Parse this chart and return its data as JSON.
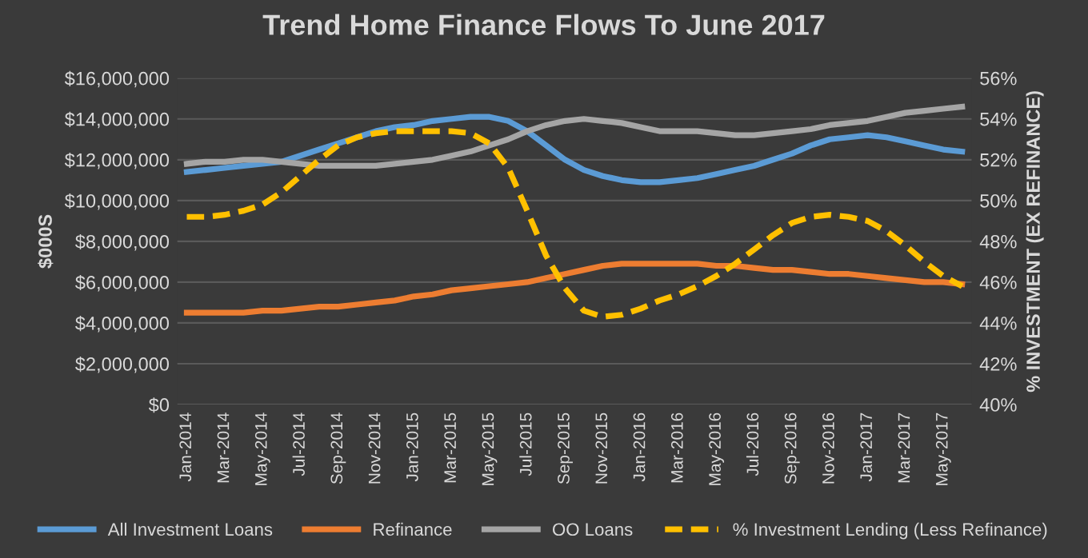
{
  "chart_data": {
    "type": "line",
    "title": "Trend Home Finance Flows To June 2017",
    "ylabel": "$000S",
    "y2label": "% INVESTMENT (EX REFINANCE)",
    "categories": [
      "Jan-2014",
      null,
      "Mar-2014",
      null,
      "May-2014",
      null,
      "Jul-2014",
      null,
      "Sep-2014",
      null,
      "Nov-2014",
      null,
      "Jan-2015",
      null,
      "Mar-2015",
      null,
      "May-2015",
      null,
      "Jul-2015",
      null,
      "Sep-2015",
      null,
      "Nov-2015",
      null,
      "Jan-2016",
      null,
      "Mar-2016",
      null,
      "May-2016",
      null,
      "Jul-2016",
      null,
      "Sep-2016",
      null,
      "Nov-2016",
      null,
      "Jan-2017",
      null,
      "Mar-2017",
      null,
      "May-2017",
      null
    ],
    "series": [
      {
        "name": "All Investment Loans",
        "color": "#5b9bd5",
        "values": [
          11400000,
          11500000,
          11600000,
          11700000,
          11800000,
          11900000,
          12200000,
          12500000,
          12800000,
          13100000,
          13400000,
          13600000,
          13700000,
          13900000,
          14000000,
          14100000,
          14100000,
          13900000,
          13400000,
          12700000,
          12000000,
          11500000,
          11200000,
          11000000,
          10900000,
          10900000,
          11000000,
          11100000,
          11300000,
          11500000,
          11700000,
          12000000,
          12300000,
          12700000,
          13000000,
          13100000,
          13200000,
          13100000,
          12900000,
          12700000,
          12500000,
          12400000
        ]
      },
      {
        "name": "Refinance",
        "color": "#ed7d31",
        "values": [
          4500000,
          4500000,
          4500000,
          4500000,
          4600000,
          4600000,
          4700000,
          4800000,
          4800000,
          4900000,
          5000000,
          5100000,
          5300000,
          5400000,
          5600000,
          5700000,
          5800000,
          5900000,
          6000000,
          6200000,
          6400000,
          6600000,
          6800000,
          6900000,
          6900000,
          6900000,
          6900000,
          6900000,
          6800000,
          6800000,
          6700000,
          6600000,
          6600000,
          6500000,
          6400000,
          6400000,
          6300000,
          6200000,
          6100000,
          6000000,
          6000000,
          5900000
        ]
      },
      {
        "name": "OO Loans",
        "color": "#a5a5a5",
        "values": [
          11800000,
          11900000,
          11900000,
          12000000,
          12000000,
          11900000,
          11800000,
          11700000,
          11700000,
          11700000,
          11700000,
          11800000,
          11900000,
          12000000,
          12200000,
          12400000,
          12700000,
          13000000,
          13400000,
          13700000,
          13900000,
          14000000,
          13900000,
          13800000,
          13600000,
          13400000,
          13400000,
          13400000,
          13300000,
          13200000,
          13200000,
          13300000,
          13400000,
          13500000,
          13700000,
          13800000,
          13900000,
          14100000,
          14300000,
          14400000,
          14500000,
          14600000
        ]
      },
      {
        "name": "% Investment Lending (Less Refinance)",
        "color": "#ffc000",
        "axis": "y2",
        "line_style": "dashed",
        "values": [
          49.2,
          49.2,
          49.3,
          49.5,
          49.8,
          50.4,
          51.2,
          52.0,
          52.7,
          53.1,
          53.3,
          53.4,
          53.4,
          53.4,
          53.4,
          53.3,
          52.8,
          51.6,
          49.5,
          47.3,
          45.7,
          44.6,
          44.3,
          44.4,
          44.7,
          45.1,
          45.4,
          45.8,
          46.3,
          46.9,
          47.6,
          48.3,
          48.9,
          49.2,
          49.3,
          49.2,
          49.0,
          48.5,
          47.8,
          47.0,
          46.3,
          45.8
        ]
      }
    ],
    "ylim": [
      0,
      16000000
    ],
    "yticks": [
      {
        "value": 0,
        "label": "$0"
      },
      {
        "value": 2000000,
        "label": "$2,000,000"
      },
      {
        "value": 4000000,
        "label": "$4,000,000"
      },
      {
        "value": 6000000,
        "label": "$6,000,000"
      },
      {
        "value": 8000000,
        "label": "$8,000,000"
      },
      {
        "value": 10000000,
        "label": "$10,000,000"
      },
      {
        "value": 12000000,
        "label": "$12,000,000"
      },
      {
        "value": 14000000,
        "label": "$14,000,000"
      },
      {
        "value": 16000000,
        "label": "$16,000,000"
      }
    ],
    "y2lim": [
      40,
      56
    ],
    "y2ticks": [
      {
        "value": 40,
        "label": "40%"
      },
      {
        "value": 42,
        "label": "42%"
      },
      {
        "value": 44,
        "label": "44%"
      },
      {
        "value": 46,
        "label": "46%"
      },
      {
        "value": 48,
        "label": "48%"
      },
      {
        "value": 50,
        "label": "50%"
      },
      {
        "value": 52,
        "label": "52%"
      },
      {
        "value": 54,
        "label": "54%"
      },
      {
        "value": 56,
        "label": "56%"
      }
    ],
    "grid": "y",
    "legend": "bottom"
  }
}
